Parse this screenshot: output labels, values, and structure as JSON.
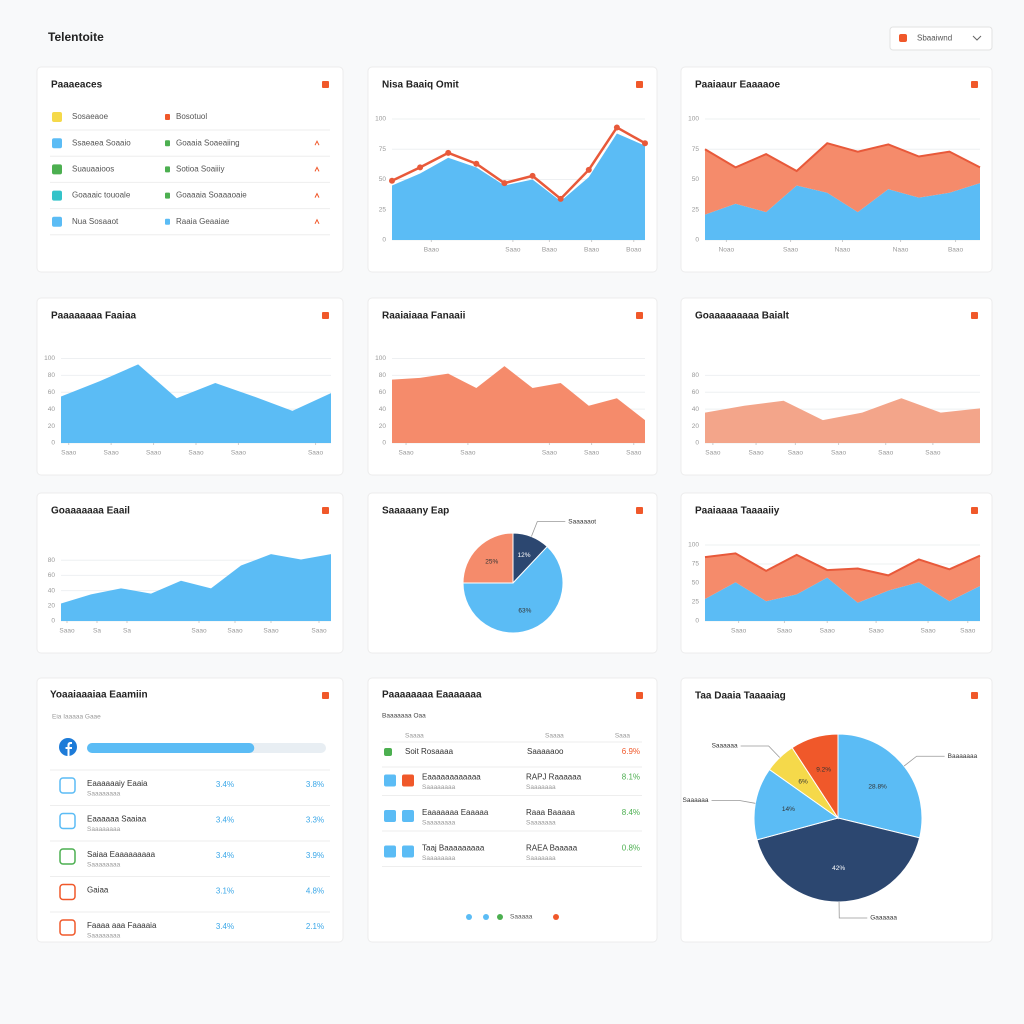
{
  "header": {
    "title": "Telentoite",
    "dropdown": "Sbaaiwnd"
  },
  "chart_data": [
    {
      "type": "area",
      "title": "Nisa Baaiq Omit",
      "stacked": false,
      "x": [
        0,
        1,
        2,
        3,
        4,
        5,
        6,
        7,
        8,
        9
      ],
      "xlim": [
        0,
        9
      ],
      "xticks": [
        {
          "value": 1.4,
          "label": "Baao"
        },
        {
          "value": 4.3,
          "label": "Saao"
        },
        {
          "value": 5.6,
          "label": "Baao"
        },
        {
          "value": 7.1,
          "label": "Baao"
        },
        {
          "value": 8.6,
          "label": "Boao"
        }
      ],
      "ylim": [
        0,
        100
      ],
      "yticks": [
        0,
        25,
        50,
        75,
        100
      ],
      "series": [
        {
          "kind": "area",
          "color": "#5bbcf5",
          "values": [
            45,
            55,
            68,
            60,
            45,
            50,
            32,
            52,
            88,
            78
          ]
        },
        {
          "kind": "line",
          "color": "#e8593a",
          "values": [
            49,
            60,
            72,
            63,
            47,
            53,
            34,
            58,
            93,
            80
          ]
        }
      ]
    },
    {
      "type": "area",
      "title": "Paaiaaur Eaaaaoe",
      "stacked": true,
      "x": [
        0,
        1,
        2,
        3,
        4,
        5,
        6,
        7,
        8,
        9
      ],
      "xlim": [
        0,
        9
      ],
      "xticks": [
        {
          "value": 0.7,
          "label": "Noao"
        },
        {
          "value": 2.8,
          "label": "Saao"
        },
        {
          "value": 4.5,
          "label": "Naao"
        },
        {
          "value": 6.4,
          "label": "Naao"
        },
        {
          "value": 8.2,
          "label": "Baao"
        }
      ],
      "ylim": [
        0,
        100
      ],
      "yticks": [
        0,
        25,
        50,
        75,
        100
      ],
      "series": [
        {
          "kind": "area",
          "color": "#5bbcf5",
          "values": [
            21,
            30,
            23,
            45,
            39,
            23,
            42,
            35,
            39,
            47
          ]
        },
        {
          "kind": "area",
          "color": "#f58b6b",
          "stroke": "#e8593a",
          "values": [
            54,
            30,
            48,
            12,
            41,
            50,
            37,
            34,
            34,
            13
          ]
        }
      ]
    },
    {
      "type": "area",
      "title": "Paaaaaaaa Faaiaa",
      "stacked": false,
      "x": [
        0,
        1,
        2,
        3,
        4,
        5,
        6,
        7
      ],
      "xlim": [
        0,
        7
      ],
      "xticks": [
        {
          "value": 0.2,
          "label": "Saao"
        },
        {
          "value": 1.3,
          "label": "Saao"
        },
        {
          "value": 2.4,
          "label": "Saao"
        },
        {
          "value": 3.5,
          "label": "Saao"
        },
        {
          "value": 4.6,
          "label": "Saao"
        },
        {
          "value": 6.6,
          "label": "Saao"
        }
      ],
      "ylim": [
        0,
        110
      ],
      "yticks": [
        0,
        20,
        40,
        60,
        80,
        100
      ],
      "series": [
        {
          "kind": "area",
          "color": "#5bbcf5",
          "values": [
            55,
            73,
            93,
            53,
            71,
            55,
            38,
            59
          ]
        }
      ]
    },
    {
      "type": "area",
      "title": "Raaiaiaaa Fanaaii",
      "stacked": false,
      "x": [
        0,
        1,
        2,
        3,
        4,
        5,
        6,
        7,
        8,
        9
      ],
      "xlim": [
        0,
        9
      ],
      "xticks": [
        {
          "value": 0.5,
          "label": "Saao"
        },
        {
          "value": 2.7,
          "label": "Saao"
        },
        {
          "value": 5.6,
          "label": "Saao"
        },
        {
          "value": 7.1,
          "label": "Saao"
        },
        {
          "value": 8.6,
          "label": "Saao"
        }
      ],
      "ylim": [
        0,
        110
      ],
      "yticks": [
        0,
        20,
        40,
        60,
        80,
        100
      ],
      "series": [
        {
          "kind": "area",
          "color": "#f58b6b",
          "values": [
            75,
            77,
            82,
            65,
            91,
            65,
            71,
            44,
            53,
            27
          ]
        }
      ]
    },
    {
      "type": "area",
      "title": "Goaaaaaaaaa Baialt",
      "stacked": false,
      "x": [
        0,
        1,
        2,
        3,
        4,
        5,
        6,
        7
      ],
      "xlim": [
        0,
        7
      ],
      "xticks": [
        {
          "value": 0.2,
          "label": "Saao"
        },
        {
          "value": 1.3,
          "label": "Saao"
        },
        {
          "value": 2.3,
          "label": "Saao"
        },
        {
          "value": 3.4,
          "label": "Saao"
        },
        {
          "value": 4.6,
          "label": "Saao"
        },
        {
          "value": 5.8,
          "label": "Saao"
        }
      ],
      "ylim": [
        0,
        110
      ],
      "yticks": [
        0,
        20,
        40,
        60,
        80
      ],
      "series": [
        {
          "kind": "area",
          "color": "#f3a58a",
          "values": [
            36,
            44,
            50,
            27,
            36,
            53,
            36,
            41
          ]
        }
      ]
    },
    {
      "type": "area",
      "title": "Goaaaaaaa Eaail",
      "stacked": false,
      "x": [
        0,
        1,
        2,
        3,
        4,
        5,
        6,
        7,
        8,
        9
      ],
      "xlim": [
        0,
        9
      ],
      "xticks": [
        {
          "value": 0.2,
          "label": "Saao"
        },
        {
          "value": 1.2,
          "label": "Sa"
        },
        {
          "value": 2.2,
          "label": "Sa"
        },
        {
          "value": 4.6,
          "label": "Saao"
        },
        {
          "value": 5.8,
          "label": "Saao"
        },
        {
          "value": 7.0,
          "label": "Saao"
        },
        {
          "value": 8.6,
          "label": "Saao"
        }
      ],
      "ylim": [
        0,
        100
      ],
      "yticks": [
        0,
        20,
        40,
        60,
        80
      ],
      "series": [
        {
          "kind": "area",
          "color": "#5bbcf5",
          "values": [
            23,
            35,
            43,
            36,
            53,
            43,
            73,
            88,
            81,
            88
          ]
        }
      ]
    },
    {
      "type": "pie",
      "title": "Saaaaany Eap",
      "values": [
        12,
        63,
        25
      ],
      "value_labels": [
        "12%",
        "63%",
        "25%"
      ],
      "colors": [
        "#2c4770",
        "#5bbcf5",
        "#f58b6b"
      ],
      "labels": [
        "Saaaaaot",
        null,
        null
      ]
    },
    {
      "type": "area",
      "title": "Paaiaaaa Taaaaiiy",
      "stacked": true,
      "x": [
        0,
        1,
        2,
        3,
        4,
        5,
        6,
        7,
        8,
        9
      ],
      "xlim": [
        0,
        9
      ],
      "xticks": [
        {
          "value": 1.1,
          "label": "Saao"
        },
        {
          "value": 2.6,
          "label": "Saao"
        },
        {
          "value": 4.0,
          "label": "Saao"
        },
        {
          "value": 5.6,
          "label": "Saao"
        },
        {
          "value": 7.3,
          "label": "Saao"
        },
        {
          "value": 8.6,
          "label": "Saao"
        }
      ],
      "ylim": [
        0,
        100
      ],
      "yticks": [
        0,
        25,
        50,
        75,
        100
      ],
      "series": [
        {
          "kind": "area",
          "color": "#5bbcf5",
          "values": [
            29,
            51,
            26,
            35,
            57,
            24,
            40,
            51,
            26,
            46
          ]
        },
        {
          "kind": "area",
          "color": "#f58b6b",
          "stroke": "#e8593a",
          "values": [
            55,
            38,
            40,
            52,
            10,
            45,
            20,
            30,
            42,
            40
          ]
        }
      ]
    },
    {
      "type": "pie",
      "title": "Taa Daaia Taaaaiag",
      "values": [
        28.8,
        42,
        14,
        6,
        9.2
      ],
      "value_labels": [
        "28.8%",
        "42%",
        "14%",
        "6%",
        "9.2%"
      ],
      "colors": [
        "#5bbcf5",
        "#2c4770",
        "#5bbcf5",
        "#f5d94a",
        "#f0582a"
      ],
      "labels": [
        "Baaaaaaa",
        "Gaaaaaa",
        "Saaaaaa",
        "Saaaaaa",
        null
      ]
    }
  ],
  "panels": {
    "list": {
      "title": "Paaaeaces",
      "rows": [
        {
          "a": "Sosaeaoe",
          "b": "Bosotuol",
          "color": "#f5d94a",
          "color2": "#f0582a",
          "arrow": false
        },
        {
          "a": "Ssaeaea Soaaio",
          "b": "Goaaia Soaeaiing",
          "color": "#5bbcf5",
          "color2": "#4caf50",
          "arrow": true
        },
        {
          "a": "Suauaaioos",
          "b": "Sotioa Soaiiiy",
          "color": "#4caf50",
          "color2": "#4caf50",
          "arrow": true
        },
        {
          "a": "Goaaaic touoale",
          "b": "Goaaaia Soaaaoaie",
          "color": "#34c3c9",
          "color2": "#4caf50",
          "arrow": true
        },
        {
          "a": "Nua Sosaaot",
          "b": "Raaia Geaaiae",
          "color": "#5bbcf5",
          "color2": "#5bbcf5",
          "arrow": true
        }
      ]
    },
    "progress": {
      "title": "Yoaaiaaaiaa Eaamiin",
      "subtitle": "Eia Iaaaaa Gaae",
      "progress": 70,
      "rows": [
        {
          "name": "Eaaaaaaiy Eaaia",
          "sub": "Saaaaaaaa",
          "v1": "3.4%",
          "v2": "3.8%",
          "color": "#5bbcf5"
        },
        {
          "name": "Eaaaaaa Saaiaa",
          "sub": "Saaaaaaaa",
          "v1": "3.4%",
          "v2": "3.3%",
          "color": "#5bbcf5"
        },
        {
          "name": "Saiaa Eaaaaaaaaa",
          "sub": "Saaaaaaaa",
          "v1": "3.4%",
          "v2": "3.9%",
          "color": "#4caf50"
        },
        {
          "name": "Gaiaa",
          "sub": "",
          "v1": "3.1%",
          "v2": "4.8%",
          "color": "#f0582a"
        },
        {
          "name": "Faaaa aaa Faaaaia",
          "sub": "Saaaaaaaa",
          "v1": "3.4%",
          "v2": "2.1%",
          "color": "#f0582a"
        }
      ]
    },
    "table": {
      "title": "Paaaaaaaa Eaaaaaaa",
      "subtitle": "Baaaaaaa Oaa",
      "columns": [
        "Saaaa",
        "Saaaa",
        "Saaa"
      ],
      "rows": [
        {
          "name": "Soit Rosaaaa",
          "sub": "",
          "mid": "Saaaaaoo",
          "midsub": "",
          "val": "6.9%",
          "c1": "#4caf50",
          "c2": null,
          "vcolor": "#f0582a"
        },
        {
          "name": "Eaaaaaaaaaaaa",
          "sub": "Saaaaaaaa",
          "mid": "RAPJ Raaaaaa",
          "midsub": "Saaaaaaa",
          "val": "8.1%",
          "c1": "#5bbcf5",
          "c2": "#f0582a",
          "vcolor": "#4caf50"
        },
        {
          "name": "Eaaaaaaa Eaaaaa",
          "sub": "Saaaaaaaa",
          "mid": "Raaa Baaaaa",
          "midsub": "Saaaaaaa",
          "val": "8.4%",
          "c1": "#5bbcf5",
          "c2": "#5bbcf5",
          "vcolor": "#4caf50"
        },
        {
          "name": "Taaj Baaaaaaaaa",
          "sub": "Saaaaaaaa",
          "mid": "RAEA Baaaaa",
          "midsub": "Saaaaaaa",
          "val": "0.8%",
          "c1": "#5bbcf5",
          "c2": "#5bbcf5",
          "vcolor": "#4caf50"
        }
      ],
      "pager": "Saaaaa"
    }
  }
}
